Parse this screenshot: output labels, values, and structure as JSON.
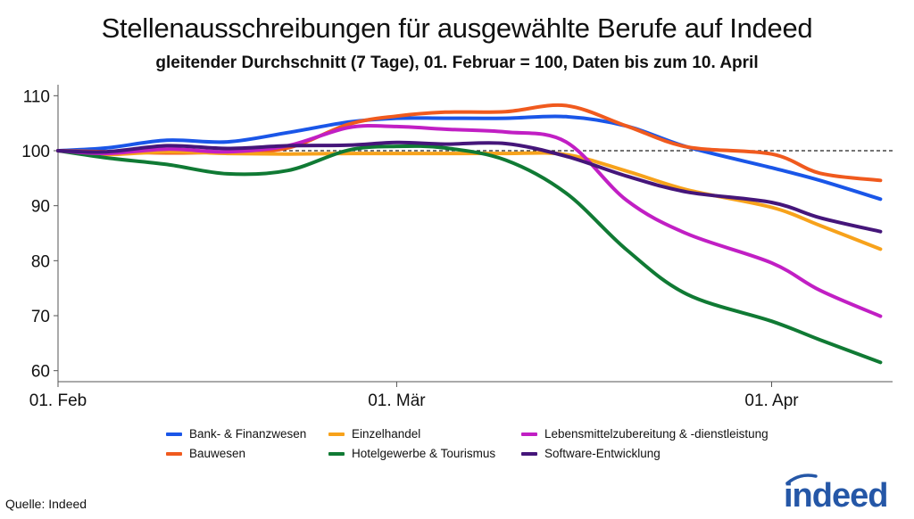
{
  "title": "Stellenausschreibungen für ausgewählte Berufe auf Indeed",
  "subtitle": "gleitender Durchschnitt (7 Tage), 01. Februar = 100, Daten bis zum 10. April",
  "source": "Quelle: Indeed",
  "logo_text": "indeed",
  "colors": {
    "brand": "#2557a7",
    "reference_line": "#222222"
  },
  "chart_data": {
    "type": "line",
    "x": [
      "01. Feb",
      "05. Feb",
      "10. Feb",
      "15. Feb",
      "20. Feb",
      "25. Feb",
      "01. Mär",
      "05. Mär",
      "10. Mär",
      "15. Mär",
      "20. Mär",
      "25. Mär",
      "01. Apr",
      "05. Apr",
      "10. Apr"
    ],
    "xticks": [
      "01. Feb",
      "01. Mär",
      "01. Apr"
    ],
    "yticks": [
      60,
      70,
      80,
      90,
      100,
      110
    ],
    "ylim": [
      58,
      112
    ],
    "reference_line": 100,
    "reference_style": "dashed",
    "grid": false,
    "legend_position": "bottom",
    "series": [
      {
        "name": "Bank- & Finanzwesen",
        "color": "#1a56e8",
        "values": [
          100,
          100.5,
          101.9,
          101.6,
          103.3,
          105.2,
          105.9,
          105.9,
          105.9,
          106.2,
          104.5,
          100.7,
          96.9,
          94.6,
          91.2
        ]
      },
      {
        "name": "Bauwesen",
        "color": "#f05a1e",
        "values": [
          100,
          99.8,
          99.6,
          99.8,
          100.5,
          104.8,
          106.3,
          107.0,
          107.1,
          108.2,
          104.5,
          100.7,
          99.4,
          95.9,
          94.6
        ]
      },
      {
        "name": "Einzelhandel",
        "color": "#f7a21b",
        "values": [
          100,
          99.3,
          99.8,
          99.5,
          99.4,
          99.5,
          99.5,
          99.5,
          99.5,
          99.3,
          96.3,
          92.9,
          89.7,
          86.4,
          82.1
        ]
      },
      {
        "name": "Hotelgewerbe & Tourismus",
        "color": "#107a34",
        "values": [
          100,
          98.7,
          97.5,
          95.8,
          96.4,
          100.1,
          100.8,
          100.5,
          98.3,
          92.3,
          82.0,
          73.9,
          69.0,
          65.6,
          61.5
        ]
      },
      {
        "name": "Lebensmittelzubereitung & -dienstleistung",
        "color": "#c11fc4",
        "values": [
          100,
          99.5,
          100.3,
          99.8,
          100.9,
          104.2,
          104.4,
          103.9,
          103.4,
          101.6,
          91.0,
          84.9,
          79.6,
          74.6,
          69.9
        ]
      },
      {
        "name": "Software-Entwicklung",
        "color": "#45167a",
        "values": [
          100,
          99.8,
          100.9,
          100.4,
          100.9,
          101.0,
          101.5,
          101.2,
          101.3,
          99.0,
          95.4,
          92.5,
          90.6,
          87.8,
          85.3
        ]
      }
    ]
  }
}
